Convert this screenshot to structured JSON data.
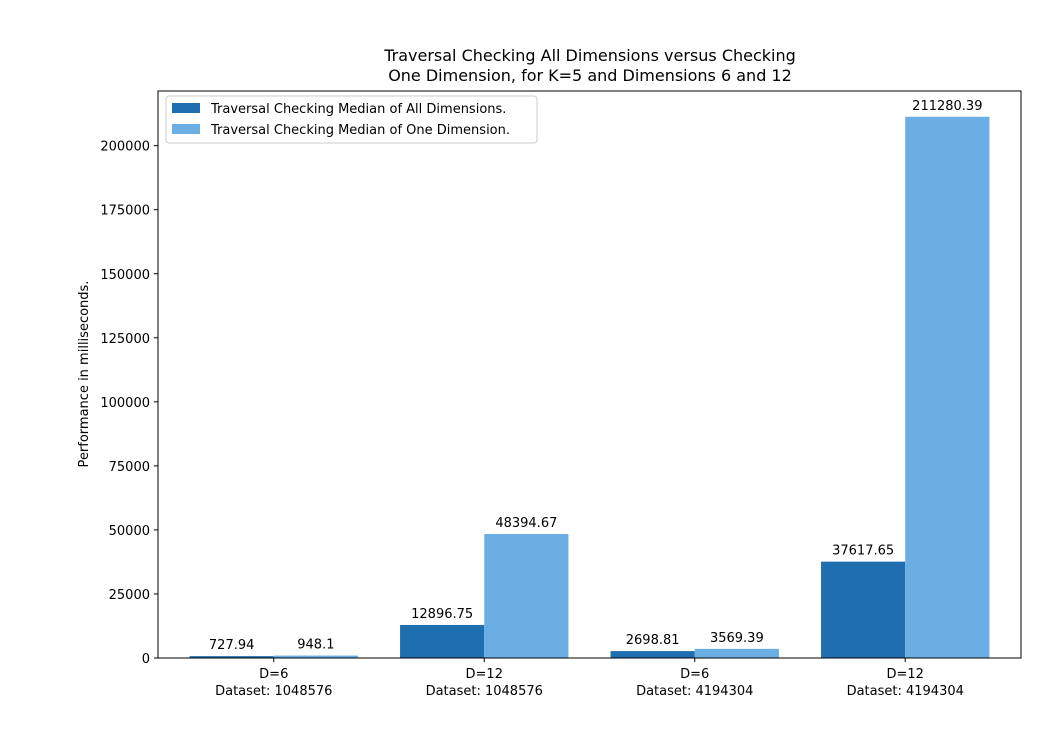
{
  "chart_data": {
    "type": "bar",
    "title_lines": [
      "Traversal Checking All Dimensions versus Checking",
      "One Dimension, for K=5 and Dimensions 6 and 12"
    ],
    "xlabel": "",
    "ylabel": "Performance in milliseconds.",
    "categories": [
      [
        "D=6",
        "Dataset: 1048576"
      ],
      [
        "D=12",
        "Dataset: 1048576"
      ],
      [
        "D=6",
        "Dataset: 4194304"
      ],
      [
        "D=12",
        "Dataset: 4194304"
      ]
    ],
    "series": [
      {
        "name": "Traversal Checking Median of All Dimensions.",
        "color": "#1f6eb0",
        "values": [
          727.94,
          12896.75,
          2698.81,
          37617.65
        ],
        "labels": [
          "727.94",
          "12896.75",
          "2698.81",
          "37617.65"
        ]
      },
      {
        "name": "Traversal Checking Median of One Dimension.",
        "color": "#6aaee3",
        "values": [
          948.1,
          48394.67,
          3569.39,
          211280.39
        ],
        "labels": [
          "948.1",
          "48394.67",
          "3569.39",
          "211280.39"
        ]
      }
    ],
    "ylim": [
      0,
      221344
    ],
    "yticks": [
      0,
      25000,
      50000,
      75000,
      100000,
      125000,
      150000,
      175000,
      200000
    ],
    "legend_position": "upper-left",
    "grid": false
  }
}
